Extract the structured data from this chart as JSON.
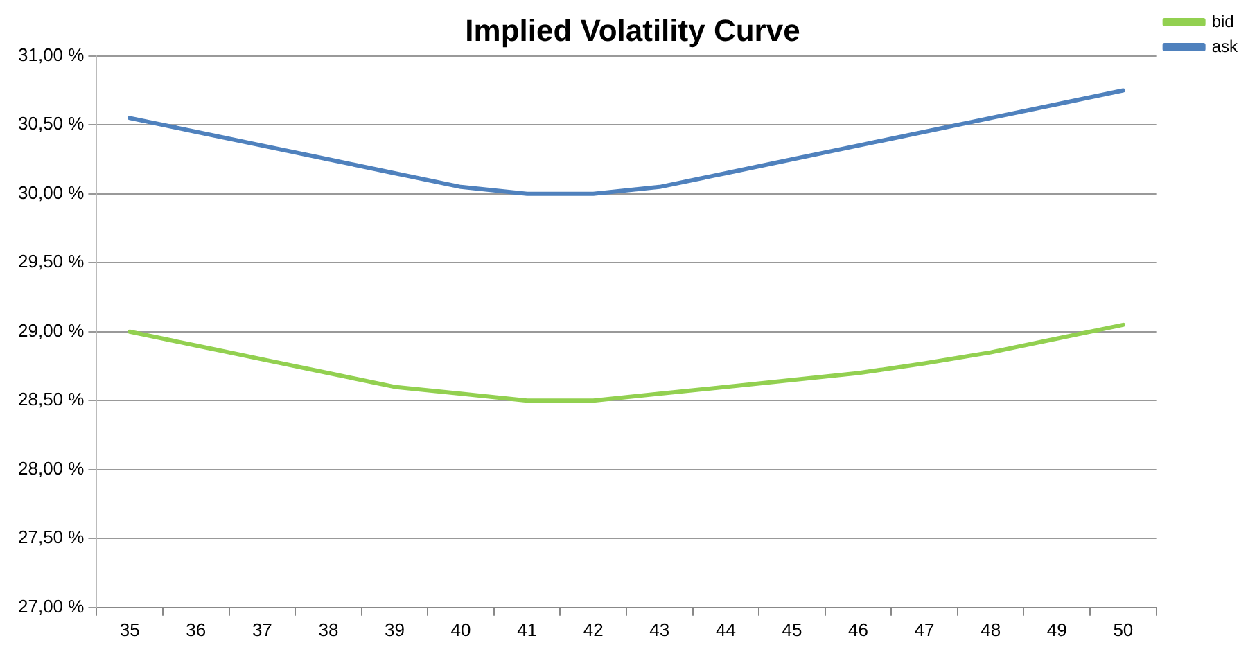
{
  "chart_data": {
    "type": "line",
    "title": "Implied Volatility Curve",
    "categories": [
      "35",
      "36",
      "37",
      "38",
      "39",
      "40",
      "41",
      "42",
      "43",
      "44",
      "45",
      "46",
      "47",
      "48",
      "49",
      "50"
    ],
    "series": [
      {
        "name": "bid",
        "color": "#92d050",
        "values": [
          29.0,
          28.9,
          28.8,
          28.7,
          28.6,
          28.55,
          28.5,
          28.5,
          28.55,
          28.6,
          28.65,
          28.7,
          28.77,
          28.85,
          28.95,
          29.05
        ]
      },
      {
        "name": "ask",
        "color": "#4f81bd",
        "values": [
          30.55,
          30.45,
          30.35,
          30.25,
          30.15,
          30.05,
          30.0,
          30.0,
          30.05,
          30.15,
          30.25,
          30.35,
          30.45,
          30.55,
          30.65,
          30.75
        ]
      }
    ],
    "ylim": [
      27,
      31
    ],
    "yticks": [
      {
        "value": 27,
        "label": "27,00 %"
      },
      {
        "value": 27.5,
        "label": "27,50 %"
      },
      {
        "value": 28,
        "label": "28,00 %"
      },
      {
        "value": 28.5,
        "label": "28,50 %"
      },
      {
        "value": 29,
        "label": "29,00 %"
      },
      {
        "value": 29.5,
        "label": "29,50 %"
      },
      {
        "value": 30,
        "label": "30,00 %"
      },
      {
        "value": 30.5,
        "label": "30,50 %"
      },
      {
        "value": 31,
        "label": "31,00 %"
      }
    ],
    "grid": "y",
    "legend": "top right",
    "marker": "none",
    "line_style": "solid"
  }
}
